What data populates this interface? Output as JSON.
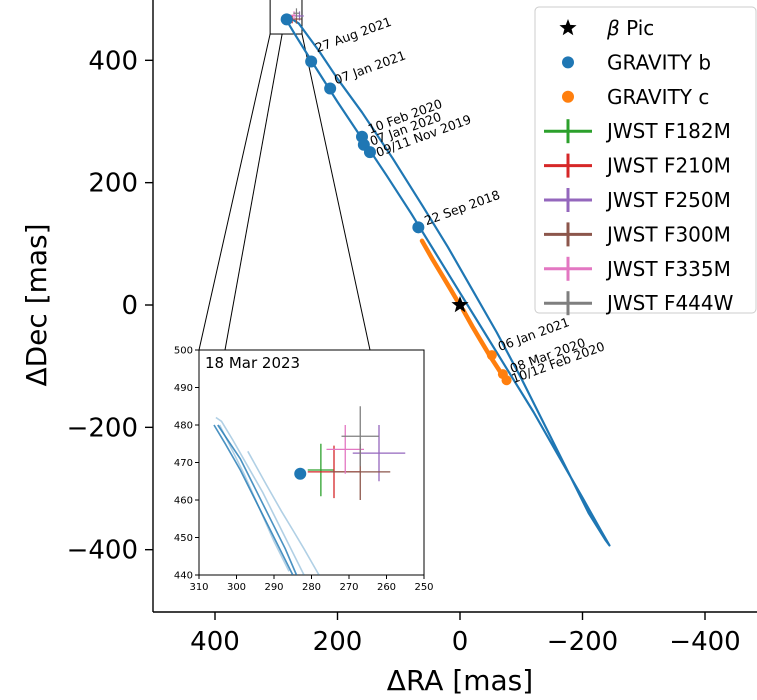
{
  "chart_data": {
    "type": "scatter",
    "xlabel": "ΔRA [mas]",
    "ylabel": "ΔDec [mas]",
    "xlim": [
      500,
      -490
    ],
    "ylim": [
      -500,
      500
    ],
    "xticks": [
      {
        "value": 400,
        "label": "400"
      },
      {
        "value": 200,
        "label": "200"
      },
      {
        "value": 0,
        "label": "0"
      },
      {
        "value": -200,
        "label": "−200"
      },
      {
        "value": -400,
        "label": "−400"
      }
    ],
    "yticks": [
      {
        "value": 400,
        "label": "400"
      },
      {
        "value": 200,
        "label": "200"
      },
      {
        "value": 0,
        "label": "0"
      },
      {
        "value": -200,
        "label": "−200"
      },
      {
        "value": -400,
        "label": "−400"
      }
    ],
    "star": {
      "name": "β Pic",
      "x": 0,
      "y": 0,
      "color": "#000000"
    },
    "orbits": [
      {
        "color": "#1f77b4",
        "points": [
          [
            283,
            473
          ],
          [
            263,
            460
          ],
          [
            230,
            415
          ],
          [
            200,
            370
          ],
          [
            160,
            315
          ],
          [
            110,
            240
          ],
          [
            60,
            160
          ],
          [
            20,
            95
          ],
          [
            -20,
            25
          ],
          [
            -60,
            -45
          ],
          [
            -100,
            -120
          ],
          [
            -140,
            -200
          ],
          [
            -180,
            -280
          ],
          [
            -210,
            -340
          ],
          [
            -238,
            -385
          ],
          [
            -244,
            -393
          ],
          [
            -232,
            -372
          ],
          [
            -200,
            -315
          ],
          [
            -160,
            -245
          ],
          [
            -120,
            -175
          ],
          [
            -80,
            -110
          ],
          [
            -40,
            -45
          ],
          [
            0,
            20
          ],
          [
            40,
            85
          ],
          [
            80,
            150
          ],
          [
            120,
            212
          ],
          [
            160,
            272
          ],
          [
            200,
            332
          ],
          [
            240,
            395
          ],
          [
            268,
            440
          ],
          [
            283,
            465
          ],
          [
            285,
            472
          ],
          [
            283,
            473
          ]
        ]
      }
    ],
    "arcs_c": [
      {
        "color": "#ff7f0e",
        "points": [
          [
            62,
            105
          ],
          [
            45,
            75
          ],
          [
            30,
            50
          ],
          [
            15,
            25
          ],
          [
            5,
            8
          ]
        ]
      },
      {
        "color": "#ff7f0e",
        "points": [
          [
            -5,
            -8
          ],
          [
            -20,
            -35
          ],
          [
            -35,
            -60
          ],
          [
            -50,
            -85
          ],
          [
            -65,
            -108
          ],
          [
            -75,
            -125
          ]
        ]
      }
    ],
    "gravity_b": {
      "name": "GRAVITY b",
      "color": "#1f77b4",
      "points": [
        {
          "x": 283,
          "y": 467,
          "label": ""
        },
        {
          "x": 243,
          "y": 398,
          "label": "27 Aug 2021"
        },
        {
          "x": 212,
          "y": 354,
          "label": "07 Jan 2021"
        },
        {
          "x": 160,
          "y": 275,
          "label": "10 Feb 2020"
        },
        {
          "x": 157,
          "y": 262,
          "label": "07 Jan 2020"
        },
        {
          "x": 147,
          "y": 250,
          "label": "09/11 Nov 2019"
        },
        {
          "x": 68,
          "y": 127,
          "label": "22 Sep 2018"
        }
      ]
    },
    "gravity_c": {
      "name": "GRAVITY c",
      "color": "#ff7f0e",
      "points": [
        {
          "x": -52,
          "y": -82,
          "label": "06 Jan 2021"
        },
        {
          "x": -70,
          "y": -113,
          "label": "08 Mar 2020"
        },
        {
          "x": -76,
          "y": -123,
          "label": "10/12 Feb 2020"
        }
      ]
    },
    "jwst": [
      {
        "name": "JWST F182M",
        "color": "#2ca02c",
        "x": 277.5,
        "y": 468,
        "xerr": 3.5,
        "yerr": 7
      },
      {
        "name": "JWST F210M",
        "color": "#d62728",
        "x": 274,
        "y": 467.5,
        "xerr": 7,
        "yerr": 7
      },
      {
        "name": "JWST F250M",
        "color": "#9467bd",
        "x": 262,
        "y": 472.5,
        "xerr": 7,
        "yerr": 7.5
      },
      {
        "name": "JWST F300M",
        "color": "#8c564b",
        "x": 267,
        "y": 467.5,
        "xerr": 8,
        "yerr": 7.5
      },
      {
        "name": "JWST F335M",
        "color": "#e377c2",
        "x": 271,
        "y": 473.5,
        "xerr": 5,
        "yerr": 6.5
      },
      {
        "name": "JWST F444W",
        "color": "#7f7f7f",
        "x": 267,
        "y": 477,
        "xerr": 5,
        "yerr": 8
      }
    ],
    "legend": {
      "placement": "upper right"
    },
    "inset": {
      "title": "18 Mar 2023",
      "xlim": [
        310,
        250
      ],
      "ylim": [
        440,
        500
      ],
      "xticks": [
        310,
        300,
        290,
        280,
        270,
        260,
        250
      ],
      "yticks": [
        440,
        450,
        460,
        470,
        480,
        490,
        500
      ],
      "zoom_box": {
        "x": [
          310,
          258
        ],
        "y": [
          443,
          500
        ]
      },
      "orbit_branches": [
        {
          "points": [
            [
              304.5,
              480
            ],
            [
              302,
              475
            ],
            [
              298,
              467
            ],
            [
              294,
              458
            ],
            [
              290,
              449
            ],
            [
              286,
              441
            ]
          ]
        },
        {
          "points": [
            [
              305,
              480
            ],
            [
              303,
              477
            ],
            [
              299,
              471
            ],
            [
              295,
              463
            ],
            [
              291,
              455
            ],
            [
              287,
              447
            ],
            [
              284,
              440
            ]
          ]
        },
        {
          "points": [
            [
              305.5,
              482
            ],
            [
              304,
              481
            ],
            [
              301,
              476
            ],
            [
              297,
              469
            ],
            [
              293,
              462
            ],
            [
              290,
              456
            ],
            [
              286,
              448
            ],
            [
              282,
              440
            ]
          ]
        },
        {
          "points": [
            [
              306,
              480
            ],
            [
              303,
              475
            ],
            [
              299,
              468
            ],
            [
              295,
              460
            ],
            [
              291,
              452
            ],
            [
              287,
              444
            ],
            [
              285,
              440
            ]
          ]
        }
      ],
      "orbit_far_branch": {
        "points": [
          [
            297,
            473
          ],
          [
            292,
            464
          ],
          [
            288,
            457
          ],
          [
            285,
            452
          ],
          [
            282,
            447
          ],
          [
            278,
            440
          ]
        ]
      }
    }
  }
}
